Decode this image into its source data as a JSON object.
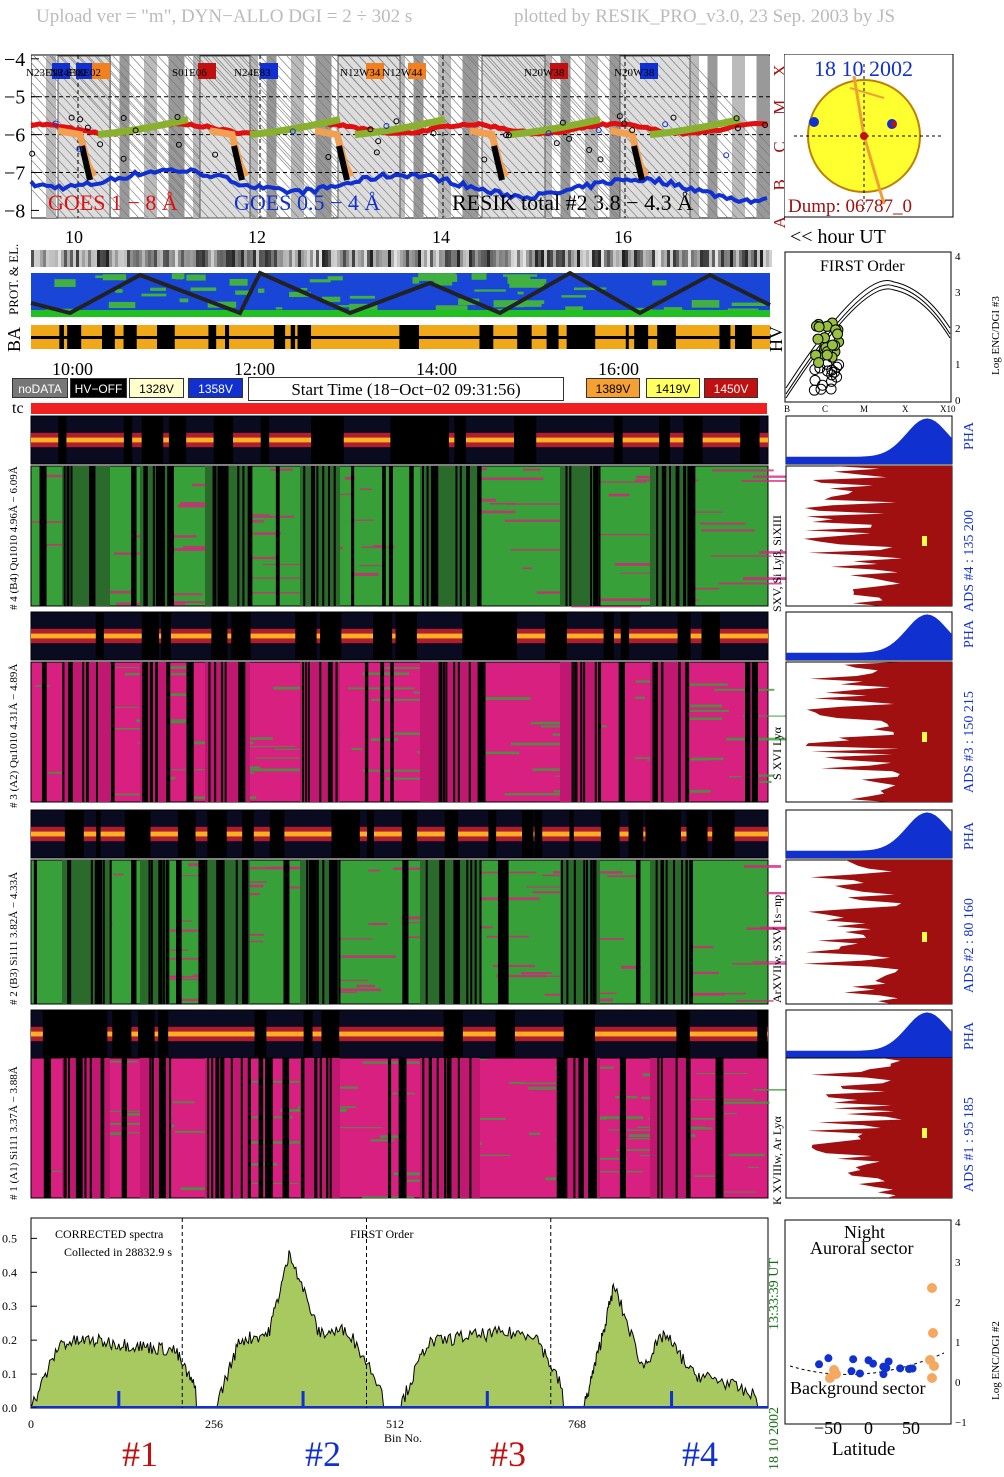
{
  "header": {
    "left": "Upload ver = \"m\", DYN−ALLO DGI =   2 ÷ 302 s",
    "right": "plotted by RESIK_PRO_v3.0, 23 Sep. 2003 by JS"
  },
  "top_chart": {
    "ylim": [
      -8.2,
      -3.9
    ],
    "yticks": [
      "−4",
      "−5",
      "−6",
      "−7",
      "−8"
    ],
    "class_labels": [
      "X",
      "M",
      "C",
      "B",
      "A"
    ],
    "legend": [
      "GOES 1 − 8 Å",
      "GOES 0.5 − 4 Å",
      "RESIK total #2  3.8 − 4.3 Å"
    ],
    "legend_colors": [
      "#e01010",
      "#1030d0",
      "#000000"
    ],
    "active_regions": [
      {
        "label": "N23E18",
        "color": "#1030d0"
      },
      {
        "label": "N24E02",
        "color": "#1030d0"
      },
      {
        "label": "S18E02",
        "color": "#f08020"
      },
      {
        "label": "S01E06",
        "color": "#c01010"
      },
      {
        "label": "N24E83",
        "color": "#1030d0"
      },
      {
        "label": "N12W34",
        "color": "#f08020"
      },
      {
        "label": "N12W44",
        "color": "#f08020"
      },
      {
        "label": "N20W38",
        "color": "#c01010"
      },
      {
        "label": "N20W38",
        "color": "#1030d0"
      }
    ],
    "hour_ticks": [
      "10",
      "12",
      "14",
      "16"
    ],
    "hour_label": "<< hour UT"
  },
  "sun_panel": {
    "date": "18 10 2002",
    "dump": "Dump: 06787_0"
  },
  "orbit_panel": {
    "labels": [
      "PROT. & EL.",
      "BA",
      "HV"
    ],
    "time_ticks": [
      "10:00",
      "12:00",
      "14:00",
      "16:00"
    ]
  },
  "legend_row": {
    "items": [
      {
        "text": "noDATA",
        "bg": "#777777",
        "fg": "#ffffff"
      },
      {
        "text": "HV−OFF",
        "bg": "#000000",
        "fg": "#ffffff"
      },
      {
        "text": "1328V",
        "bg": "#ffffcc",
        "fg": "#000000"
      },
      {
        "text": "1358V",
        "bg": "#1030d0",
        "fg": "#ffffff"
      }
    ],
    "start_time": "Start Time (18−Oct−02 09:31:56)",
    "items_right": [
      {
        "text": "1389V",
        "bg": "#f5a030",
        "fg": "#000000"
      },
      {
        "text": "1419V",
        "bg": "#ffff60",
        "fg": "#000000"
      },
      {
        "text": "1450V",
        "bg": "#c01010",
        "fg": "#ffffff"
      }
    ],
    "tc_label": "tc"
  },
  "first_order_panel": {
    "title": "FIRST Order",
    "ylabel": "Log ENC/DGI #3",
    "yticks": [
      "4",
      "3",
      "2",
      "1",
      "0"
    ],
    "xticks": [
      "B",
      "C",
      "M",
      "X",
      "X10"
    ]
  },
  "channels": [
    {
      "pha_label": "# 4 (B4) Qu1010 4.96Å − 6.09Å",
      "spec_label": "SXV, Si Lyβ, SiXIII",
      "ads": "ADS #4 :   135 200",
      "pha": "PHA"
    },
    {
      "pha_label": "# 3 (A2) Qu1010 4.31Å − 4.89Å",
      "spec_label": "S XVI Lyα",
      "ads": "ADS #3 :   150 215",
      "pha": "PHA"
    },
    {
      "pha_label": "# 2 (B3) Si111 3.82Å − 4.33Å",
      "spec_label": "ArXVIIw, SXV 1s−np",
      "ads": "ADS #2 :   80 160",
      "pha": "PHA"
    },
    {
      "pha_label": "# 1 (A1) Si111 3.37Å − 3.88Å",
      "spec_label": "K XVIIIw, Ar Lyα",
      "ads": "ADS #1 :   95 185",
      "pha": "PHA"
    }
  ],
  "spectrum": {
    "line1": "CORRECTED spectra",
    "line2": "Collected in 28832.9 s",
    "title": "FIRST Order",
    "xlabel": "Bin No.",
    "xticks": [
      "0",
      "256",
      "512",
      "768"
    ],
    "yticks": [
      "0.0",
      "0.1",
      "0.2",
      "0.3",
      "0.4",
      "0.5"
    ],
    "ylim": [
      0,
      0.56
    ],
    "channel_labels": [
      {
        "text": "#1",
        "color": "#c01010"
      },
      {
        "text": "#2",
        "color": "#1030d0"
      },
      {
        "text": "#3",
        "color": "#c01010"
      },
      {
        "text": "#4",
        "color": "#1030d0"
      }
    ],
    "time_right": "13:33:39 UT",
    "date_right": "18 10 2002"
  },
  "latitude_panel": {
    "title1": "Night",
    "title2": "Auroral sector",
    "bottom": "Background sector",
    "xlabel": "Latitude",
    "xticks": [
      "−50",
      "0",
      "50"
    ],
    "yticks": [
      "4",
      "3",
      "2",
      "1",
      "0",
      "−1"
    ],
    "ylabel": "Log ENC/DGI #2"
  },
  "chart_data": {
    "type": "line",
    "title": "",
    "xlabel": "Bin No.",
    "ylabel": "",
    "xlim": [
      0,
      1024
    ],
    "ylim": [
      0,
      0.56
    ],
    "series": [
      {
        "name": "#1",
        "x": [
          0,
          40,
          80,
          120,
          160,
          200,
          230
        ],
        "values": [
          0.0,
          0.19,
          0.2,
          0.19,
          0.18,
          0.17,
          0.05
        ]
      },
      {
        "name": "#2",
        "x": [
          256,
          290,
          330,
          360,
          400,
          440,
          490
        ],
        "values": [
          0.0,
          0.2,
          0.22,
          0.46,
          0.22,
          0.23,
          0.05
        ]
      },
      {
        "name": "#3",
        "x": [
          512,
          550,
          600,
          650,
          700,
          740
        ],
        "values": [
          0.0,
          0.19,
          0.21,
          0.22,
          0.22,
          0.05
        ]
      },
      {
        "name": "#4",
        "x": [
          768,
          790,
          810,
          850,
          880,
          920,
          960,
          1010
        ],
        "values": [
          0.0,
          0.18,
          0.36,
          0.12,
          0.22,
          0.1,
          0.08,
          0.03
        ]
      }
    ]
  }
}
